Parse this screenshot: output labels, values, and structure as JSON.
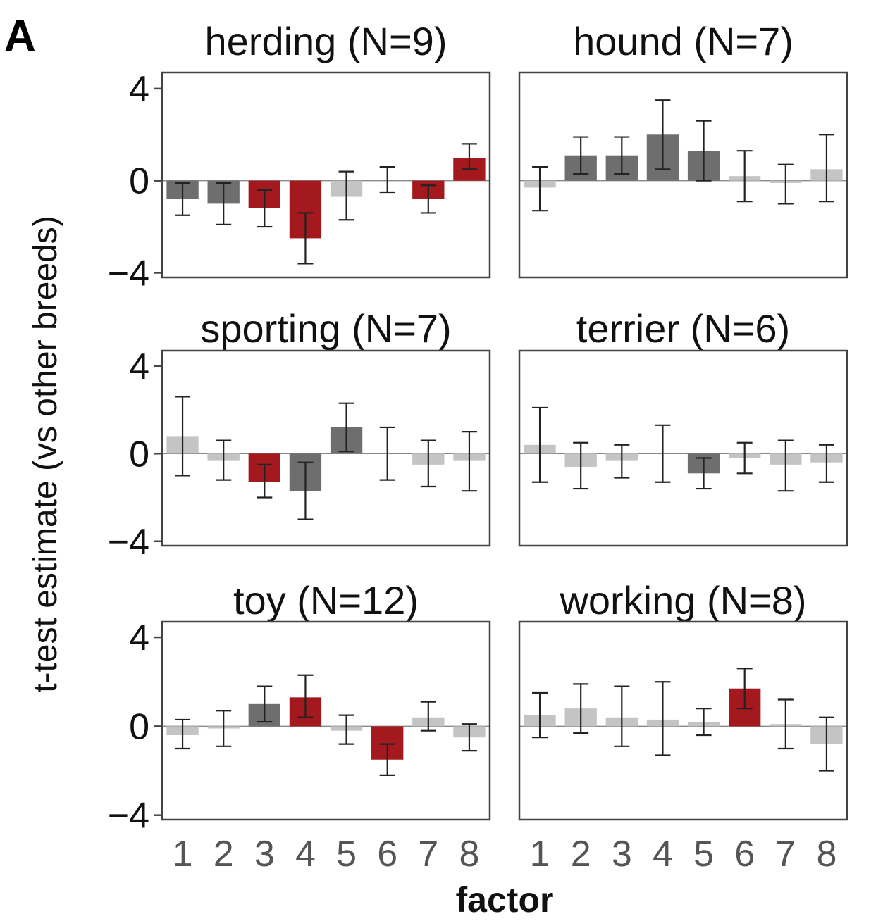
{
  "figure": {
    "panel_label": "A",
    "ylabel": "t-test estimate (vs other breeds)",
    "xlabel": "factor",
    "yticks": [
      "4",
      "0",
      "−4"
    ],
    "xticks": [
      "1",
      "2",
      "3",
      "4",
      "5",
      "6",
      "7",
      "8"
    ]
  },
  "colors": {
    "significant": "#a3191e",
    "nominal": "#6e6e6e",
    "nonsignificant": "#c4c4c4",
    "frame": "#444444",
    "errorbar": "#222222",
    "zeroline": "#888888"
  },
  "chart_data": [
    {
      "type": "bar",
      "title": "herding (N=9)",
      "categories": [
        "1",
        "2",
        "3",
        "4",
        "5",
        "6",
        "7",
        "8"
      ],
      "values": [
        -0.8,
        -1.0,
        -1.2,
        -2.5,
        -0.7,
        0.0,
        -0.8,
        1.0
      ],
      "ci_low": [
        -1.5,
        -1.9,
        -2.0,
        -3.6,
        -1.7,
        -0.5,
        -1.4,
        0.5
      ],
      "ci_high": [
        -0.1,
        -0.1,
        -0.4,
        -1.4,
        0.4,
        0.6,
        -0.2,
        1.6
      ],
      "significance": [
        "nominal",
        "nominal",
        "significant",
        "significant",
        "nonsignificant",
        "nonsignificant",
        "significant",
        "significant"
      ],
      "ylim": [
        -4.2,
        4.7
      ]
    },
    {
      "type": "bar",
      "title": "hound (N=7)",
      "categories": [
        "1",
        "2",
        "3",
        "4",
        "5",
        "6",
        "7",
        "8"
      ],
      "values": [
        -0.3,
        1.1,
        1.1,
        2.0,
        1.3,
        0.2,
        -0.1,
        0.5
      ],
      "ci_low": [
        -1.3,
        0.3,
        0.3,
        0.5,
        0.0,
        -0.9,
        -1.0,
        -0.9
      ],
      "ci_high": [
        0.6,
        1.9,
        1.9,
        3.5,
        2.6,
        1.3,
        0.7,
        2.0
      ],
      "significance": [
        "nonsignificant",
        "nominal",
        "nominal",
        "nominal",
        "nominal",
        "nonsignificant",
        "nonsignificant",
        "nonsignificant"
      ],
      "ylim": [
        -4.2,
        4.7
      ]
    },
    {
      "type": "bar",
      "title": "sporting (N=7)",
      "categories": [
        "1",
        "2",
        "3",
        "4",
        "5",
        "6",
        "7",
        "8"
      ],
      "values": [
        0.8,
        -0.3,
        -1.3,
        -1.7,
        1.2,
        0.0,
        -0.5,
        -0.3
      ],
      "ci_low": [
        -1.0,
        -1.2,
        -2.0,
        -3.0,
        0.1,
        -1.2,
        -1.5,
        -1.7
      ],
      "ci_high": [
        2.6,
        0.6,
        -0.5,
        -0.4,
        2.3,
        1.2,
        0.6,
        1.0
      ],
      "significance": [
        "nonsignificant",
        "nonsignificant",
        "significant",
        "nominal",
        "nominal",
        "nonsignificant",
        "nonsignificant",
        "nonsignificant"
      ],
      "ylim": [
        -4.2,
        4.7
      ]
    },
    {
      "type": "bar",
      "title": "terrier (N=6)",
      "categories": [
        "1",
        "2",
        "3",
        "4",
        "5",
        "6",
        "7",
        "8"
      ],
      "values": [
        0.4,
        -0.6,
        -0.3,
        0.0,
        -0.9,
        -0.2,
        -0.5,
        -0.4
      ],
      "ci_low": [
        -1.3,
        -1.6,
        -1.1,
        -1.3,
        -1.6,
        -0.9,
        -1.7,
        -1.3
      ],
      "ci_high": [
        2.1,
        0.5,
        0.4,
        1.3,
        -0.2,
        0.5,
        0.6,
        0.4
      ],
      "significance": [
        "nonsignificant",
        "nonsignificant",
        "nonsignificant",
        "nonsignificant",
        "nominal",
        "nonsignificant",
        "nonsignificant",
        "nonsignificant"
      ],
      "ylim": [
        -4.2,
        4.7
      ]
    },
    {
      "type": "bar",
      "title": "toy (N=12)",
      "categories": [
        "1",
        "2",
        "3",
        "4",
        "5",
        "6",
        "7",
        "8"
      ],
      "values": [
        -0.4,
        -0.1,
        1.0,
        1.3,
        -0.2,
        -1.5,
        0.4,
        -0.5
      ],
      "ci_low": [
        -1.0,
        -0.9,
        0.2,
        0.4,
        -0.8,
        -2.2,
        -0.2,
        -1.1
      ],
      "ci_high": [
        0.3,
        0.7,
        1.8,
        2.3,
        0.5,
        -0.8,
        1.1,
        0.1
      ],
      "significance": [
        "nonsignificant",
        "nonsignificant",
        "nominal",
        "significant",
        "nonsignificant",
        "significant",
        "nonsignificant",
        "nonsignificant"
      ],
      "ylim": [
        -4.2,
        4.7
      ]
    },
    {
      "type": "bar",
      "title": "working (N=8)",
      "categories": [
        "1",
        "2",
        "3",
        "4",
        "5",
        "6",
        "7",
        "8"
      ],
      "values": [
        0.5,
        0.8,
        0.4,
        0.3,
        0.2,
        1.7,
        0.1,
        -0.8
      ],
      "ci_low": [
        -0.5,
        -0.3,
        -0.9,
        -1.3,
        -0.4,
        0.8,
        -1.0,
        -2.0
      ],
      "ci_high": [
        1.5,
        1.9,
        1.8,
        2.0,
        0.8,
        2.6,
        1.2,
        0.4
      ],
      "significance": [
        "nonsignificant",
        "nonsignificant",
        "nonsignificant",
        "nonsignificant",
        "nonsignificant",
        "significant",
        "nonsignificant",
        "nonsignificant"
      ],
      "ylim": [
        -4.2,
        4.7
      ]
    }
  ]
}
